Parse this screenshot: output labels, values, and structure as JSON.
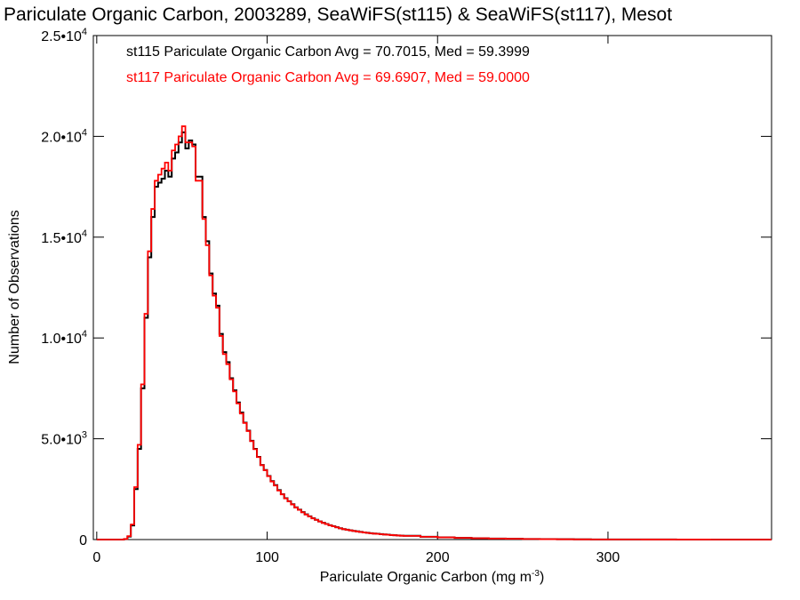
{
  "chart_data": {
    "type": "line",
    "title": "Pariculate Organic Carbon, 2003289, SeaWiFS(st115) & SeaWiFS(st117), Mesot",
    "xlabel": "Pariculate Organic Carbon (mg m",
    "xlabel_sup": "-3",
    "xlabel_end": ")",
    "ylabel": "Number of Observations",
    "xlim": [
      -2,
      396
    ],
    "ylim": [
      0,
      25000
    ],
    "x_ticks": [
      {
        "value": 0,
        "label": "0"
      },
      {
        "value": 100,
        "label": "100"
      },
      {
        "value": 200,
        "label": "200"
      },
      {
        "value": 300,
        "label": "300"
      }
    ],
    "y_ticks": [
      {
        "value": 0,
        "mant": "0",
        "exp": ""
      },
      {
        "value": 5000,
        "mant": "5.0•10",
        "exp": "3"
      },
      {
        "value": 10000,
        "mant": "1.0•10",
        "exp": "4"
      },
      {
        "value": 15000,
        "mant": "1.5•10",
        "exp": "4"
      },
      {
        "value": 20000,
        "mant": "2.0•10",
        "exp": "4"
      },
      {
        "value": 25000,
        "mant": "2.5•10",
        "exp": "4"
      }
    ],
    "bin_width": 2,
    "annotations": [
      {
        "text": "st115 Pariculate Organic Carbon Avg = 70.7015, Med = 59.3999",
        "color": "#000000"
      },
      {
        "text": "st117 Pariculate Organic Carbon Avg = 69.6907, Med = 59.0000",
        "color": "#ff0000"
      }
    ],
    "series": [
      {
        "color": "#000000",
        "x": [
          0,
          2,
          4,
          6,
          8,
          10,
          12,
          14,
          16,
          18,
          20,
          22,
          24,
          26,
          28,
          30,
          32,
          34,
          36,
          38,
          40,
          42,
          44,
          46,
          48,
          50,
          52,
          54,
          56,
          58,
          60,
          62,
          64,
          66,
          68,
          70,
          72,
          74,
          76,
          78,
          80,
          82,
          84,
          86,
          88,
          90,
          92,
          94,
          96,
          98,
          100,
          102,
          104,
          106,
          108,
          110,
          112,
          114,
          116,
          118,
          120,
          122,
          124,
          126,
          128,
          130,
          132,
          134,
          136,
          138,
          140,
          142,
          144,
          146,
          148,
          150,
          152,
          154,
          156,
          158,
          160,
          162,
          164,
          166,
          168,
          170,
          172,
          174,
          176,
          178,
          180,
          190,
          200,
          210,
          220,
          230,
          240,
          250,
          260,
          270,
          280,
          290,
          300,
          320,
          340,
          360,
          380,
          394
        ],
        "values": [
          0,
          0,
          0,
          0,
          0,
          0,
          0,
          0,
          20,
          150,
          700,
          2500,
          4500,
          7500,
          11000,
          14000,
          16000,
          17500,
          17700,
          17900,
          18300,
          18000,
          18900,
          19200,
          19700,
          20200,
          19400,
          19800,
          19600,
          18000,
          18000,
          16000,
          14800,
          13200,
          12200,
          11600,
          10200,
          9300,
          8800,
          8000,
          7400,
          6800,
          6300,
          5800,
          5400,
          4900,
          4500,
          4100,
          3700,
          3450,
          3150,
          2900,
          2700,
          2450,
          2250,
          2050,
          1900,
          1750,
          1600,
          1480,
          1360,
          1250,
          1150,
          1060,
          980,
          900,
          830,
          770,
          710,
          660,
          610,
          560,
          520,
          490,
          460,
          430,
          405,
          380,
          355,
          335,
          315,
          300,
          285,
          270,
          255,
          240,
          228,
          216,
          205,
          195,
          185,
          140,
          110,
          85,
          65,
          50,
          38,
          28,
          20,
          14,
          10,
          7,
          5,
          3,
          2,
          1,
          0,
          0
        ]
      },
      {
        "color": "#ff0000",
        "x": [
          0,
          2,
          4,
          6,
          8,
          10,
          12,
          14,
          16,
          18,
          20,
          22,
          24,
          26,
          28,
          30,
          32,
          34,
          36,
          38,
          40,
          42,
          44,
          46,
          48,
          50,
          52,
          54,
          56,
          58,
          60,
          62,
          64,
          66,
          68,
          70,
          72,
          74,
          76,
          78,
          80,
          82,
          84,
          86,
          88,
          90,
          92,
          94,
          96,
          98,
          100,
          102,
          104,
          106,
          108,
          110,
          112,
          114,
          116,
          118,
          120,
          122,
          124,
          126,
          128,
          130,
          132,
          134,
          136,
          138,
          140,
          142,
          144,
          146,
          148,
          150,
          152,
          154,
          156,
          158,
          160,
          162,
          164,
          166,
          168,
          170,
          172,
          174,
          176,
          178,
          180,
          190,
          200,
          210,
          220,
          230,
          240,
          250,
          260,
          270,
          280,
          290,
          300,
          320,
          340,
          360,
          380,
          394
        ],
        "values": [
          0,
          0,
          0,
          0,
          0,
          0,
          0,
          0,
          30,
          170,
          750,
          2600,
          4700,
          7700,
          11200,
          14300,
          16400,
          17800,
          18100,
          18400,
          18700,
          18300,
          19300,
          19600,
          20000,
          20500,
          19700,
          19700,
          19500,
          17800,
          17800,
          15900,
          14600,
          13100,
          12100,
          11500,
          10100,
          9200,
          8700,
          7950,
          7350,
          6750,
          6250,
          5780,
          5380,
          4880,
          4480,
          4090,
          3690,
          3440,
          3140,
          2880,
          2680,
          2430,
          2240,
          2040,
          1890,
          1740,
          1590,
          1470,
          1350,
          1240,
          1140,
          1050,
          975,
          895,
          825,
          765,
          705,
          655,
          605,
          555,
          515,
          485,
          455,
          425,
          400,
          375,
          350,
          330,
          310,
          295,
          280,
          265,
          250,
          236,
          224,
          212,
          201,
          191,
          181,
          137,
          107,
          83,
          63,
          48,
          37,
          27,
          19,
          13,
          9,
          6,
          4,
          3,
          2,
          1,
          0,
          0
        ]
      }
    ]
  }
}
